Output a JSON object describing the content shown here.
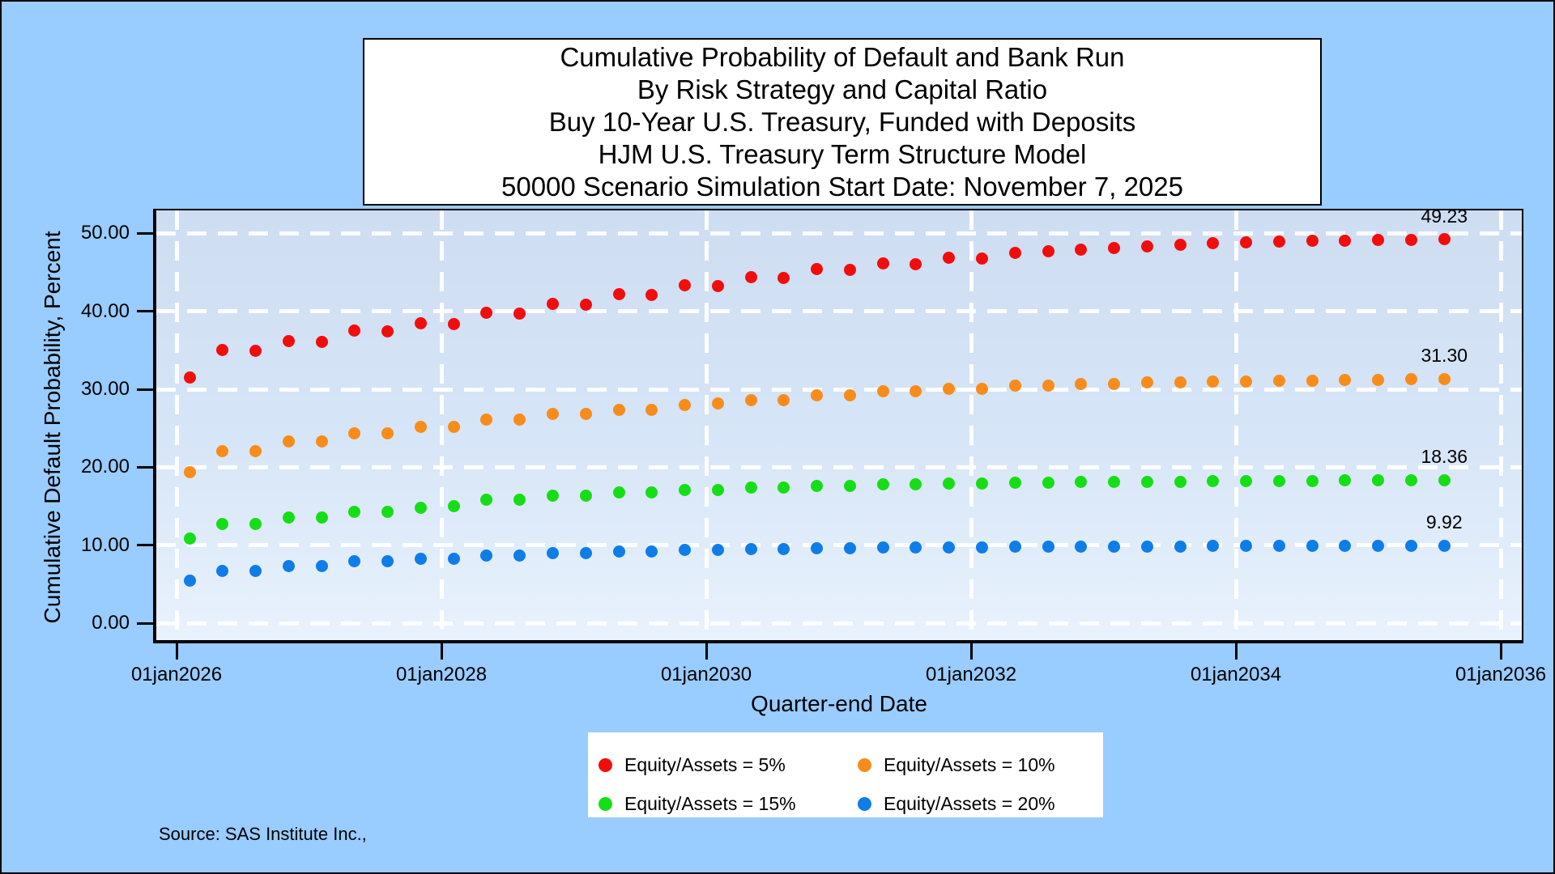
{
  "figure": {
    "title_lines": [
      "Cumulative Probability of Default and Bank Run",
      "By Risk Strategy and Capital Ratio",
      "Buy 10-Year U.S. Treasury, Funded with Deposits",
      "HJM U.S. Treasury Term Structure Model",
      "50000 Scenario Simulation Start Date: November 7, 2025"
    ],
    "source_note": "Source: SAS Institute Inc.,"
  },
  "axes": {
    "y_label": "Cumulative Default Probability, Percent",
    "x_label": "Quarter-end Date",
    "y_tick_labels": [
      "0.00",
      "10.00",
      "20.00",
      "30.00",
      "40.00",
      "50.00"
    ],
    "x_tick_labels": [
      "01jan2026",
      "01jan2028",
      "01jan2030",
      "01jan2032",
      "01jan2034",
      "01jan2036"
    ]
  },
  "legend": {
    "items": [
      {
        "label": "Equity/Assets = 5%",
        "color": "#F20D0D"
      },
      {
        "label": "Equity/Assets = 10%",
        "color": "#F88C1B"
      },
      {
        "label": "Equity/Assets = 15%",
        "color": "#16DE16"
      },
      {
        "label": "Equity/Assets = 20%",
        "color": "#0E7DE8"
      }
    ]
  },
  "colors": {
    "figure_background": "#99CCFF",
    "plot_gradient_top": "#CEDDF1",
    "plot_gradient_bottom": "#E9F2FD",
    "gridline": "#FFFFFF",
    "axis": "#000000",
    "title_box_background": "#FFFFFF"
  },
  "chart_data": {
    "type": "scatter",
    "title": "Cumulative Probability of Default and Bank Run",
    "xlabel": "Quarter-end Date",
    "ylabel": "Cumulative Default Probability, Percent",
    "x_axis": {
      "tick_labels": [
        "01jan2026",
        "01jan2028",
        "01jan2030",
        "01jan2032",
        "01jan2034",
        "01jan2036"
      ],
      "unit": "quarter-end dates, 39 quarterly points starting just after simulation start (Nov 7, 2025)",
      "n_points_per_series": 39
    },
    "ylim": [
      0,
      50
    ],
    "y_gridlines": [
      0,
      10,
      20,
      30,
      40,
      50
    ],
    "grid": "white dashed",
    "legend_position": "bottom-center",
    "series": [
      {
        "name": "Equity/Assets = 5%",
        "color": "#F20D0D",
        "end_label": "49.23",
        "values": [
          31.5,
          35.0,
          34.9,
          36.2,
          36.1,
          37.5,
          37.4,
          38.5,
          38.4,
          39.8,
          39.7,
          41.0,
          40.9,
          42.2,
          42.1,
          43.3,
          43.2,
          44.4,
          44.3,
          45.4,
          45.3,
          46.1,
          46.0,
          46.9,
          46.8,
          47.5,
          47.7,
          47.9,
          48.1,
          48.3,
          48.5,
          48.7,
          48.8,
          48.9,
          49.0,
          49.1,
          49.15,
          49.2,
          49.23
        ]
      },
      {
        "name": "Equity/Assets = 10%",
        "color": "#F88C1B",
        "end_label": "31.30",
        "values": [
          19.4,
          22.1,
          22.1,
          23.3,
          23.3,
          24.3,
          24.3,
          25.2,
          25.2,
          26.1,
          26.1,
          26.8,
          26.8,
          27.4,
          27.4,
          28.0,
          28.2,
          28.6,
          28.6,
          29.2,
          29.2,
          29.7,
          29.7,
          30.1,
          30.1,
          30.5,
          30.5,
          30.7,
          30.7,
          30.9,
          30.9,
          31.0,
          31.0,
          31.1,
          31.1,
          31.2,
          31.2,
          31.25,
          31.3
        ]
      },
      {
        "name": "Equity/Assets = 15%",
        "color": "#16DE16",
        "end_label": "18.36",
        "values": [
          10.9,
          12.7,
          12.7,
          13.5,
          13.5,
          14.3,
          14.3,
          14.8,
          15.0,
          15.8,
          15.8,
          16.4,
          16.4,
          16.8,
          16.8,
          17.1,
          17.1,
          17.4,
          17.4,
          17.6,
          17.6,
          17.8,
          17.8,
          17.9,
          17.9,
          18.0,
          18.0,
          18.1,
          18.1,
          18.15,
          18.15,
          18.2,
          18.2,
          18.25,
          18.25,
          18.3,
          18.3,
          18.33,
          18.36
        ]
      },
      {
        "name": "Equity/Assets = 20%",
        "color": "#0E7DE8",
        "end_label": "9.92",
        "values": [
          5.4,
          6.7,
          6.7,
          7.3,
          7.3,
          7.9,
          7.9,
          8.3,
          8.3,
          8.7,
          8.7,
          9.0,
          9.0,
          9.2,
          9.2,
          9.4,
          9.4,
          9.5,
          9.5,
          9.6,
          9.6,
          9.7,
          9.7,
          9.75,
          9.75,
          9.8,
          9.8,
          9.82,
          9.82,
          9.85,
          9.85,
          9.87,
          9.87,
          9.89,
          9.89,
          9.9,
          9.9,
          9.91,
          9.92
        ]
      }
    ]
  }
}
